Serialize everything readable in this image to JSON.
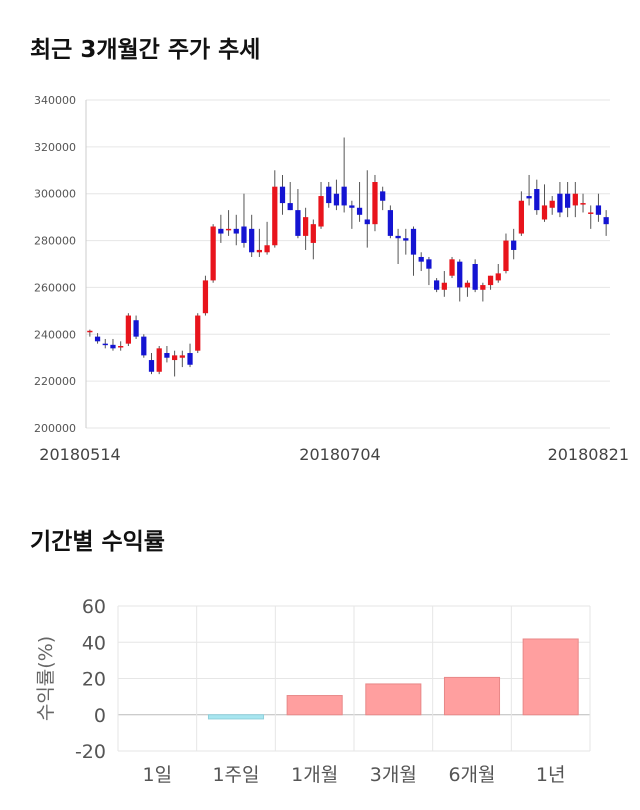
{
  "sections": {
    "price_title": "최근 3개월간 주가 추세",
    "returns_title": "기간별 수익률"
  },
  "chart_data": [
    {
      "type": "candlestick",
      "title": "최근 3개월간 주가 추세",
      "ylim": [
        200000,
        340000
      ],
      "y_ticks": [
        200000,
        220000,
        240000,
        260000,
        280000,
        300000,
        320000,
        340000
      ],
      "x_tick_labels": [
        "20180514",
        "20180704",
        "20180821"
      ],
      "grid": true,
      "colors": {
        "up": "#e8141c",
        "down": "#1414d2",
        "wick": "#555555"
      },
      "candles": [
        [
          241000,
          242000,
          239000,
          241500
        ],
        [
          239000,
          240500,
          236000,
          237000
        ],
        [
          236000,
          238000,
          234000,
          235500
        ],
        [
          235500,
          238000,
          233000,
          234000
        ],
        [
          235000,
          237000,
          233000,
          235000
        ],
        [
          236000,
          249000,
          235000,
          248000
        ],
        [
          246000,
          248000,
          238000,
          239000
        ],
        [
          239000,
          240000,
          230000,
          231000
        ],
        [
          229000,
          232000,
          223000,
          224000
        ],
        [
          224000,
          235000,
          223000,
          234000
        ],
        [
          232000,
          235000,
          228000,
          230000
        ],
        [
          229000,
          233000,
          222000,
          231000
        ],
        [
          230000,
          233000,
          226000,
          231000
        ],
        [
          232000,
          236000,
          226000,
          227000
        ],
        [
          233000,
          249000,
          232000,
          248000
        ],
        [
          249000,
          265000,
          248000,
          263000
        ],
        [
          263000,
          287000,
          262000,
          286000
        ],
        [
          285000,
          291000,
          279000,
          283000
        ],
        [
          285000,
          293000,
          282000,
          285000
        ],
        [
          285000,
          291000,
          278000,
          283000
        ],
        [
          286000,
          300000,
          277000,
          279000
        ],
        [
          285000,
          291000,
          273000,
          275000
        ],
        [
          275000,
          285000,
          273000,
          276000
        ],
        [
          275000,
          288000,
          274000,
          278000
        ],
        [
          278000,
          310000,
          277000,
          303000
        ],
        [
          303000,
          308000,
          291000,
          296000
        ],
        [
          296000,
          305000,
          293000,
          293000
        ],
        [
          293000,
          302000,
          281000,
          282000
        ],
        [
          282000,
          294000,
          276000,
          290000
        ],
        [
          279000,
          289000,
          272000,
          287000
        ],
        [
          286000,
          305000,
          285000,
          299000
        ],
        [
          303000,
          305000,
          294000,
          296000
        ],
        [
          300000,
          306000,
          293000,
          295000
        ],
        [
          303000,
          324000,
          292000,
          295000
        ],
        [
          295000,
          297000,
          285000,
          294000
        ],
        [
          294000,
          305000,
          288000,
          291000
        ],
        [
          289000,
          310000,
          277000,
          287000
        ],
        [
          287000,
          308000,
          284000,
          305000
        ],
        [
          301000,
          303000,
          293000,
          297000
        ],
        [
          293000,
          295000,
          281000,
          282000
        ],
        [
          282000,
          285000,
          270000,
          281000
        ],
        [
          281000,
          285000,
          274000,
          280000
        ],
        [
          285000,
          286000,
          265000,
          274000
        ],
        [
          273000,
          275000,
          267000,
          271000
        ],
        [
          272000,
          273000,
          261000,
          268000
        ],
        [
          263000,
          264000,
          258000,
          259000
        ],
        [
          259000,
          267000,
          256000,
          262000
        ],
        [
          265000,
          273000,
          264000,
          272000
        ],
        [
          271000,
          272000,
          254000,
          260000
        ],
        [
          260000,
          263000,
          256000,
          262000
        ],
        [
          270000,
          272000,
          258000,
          259000
        ],
        [
          259000,
          262000,
          254000,
          261000
        ],
        [
          261000,
          265000,
          259000,
          265000
        ],
        [
          263000,
          270000,
          262000,
          266000
        ],
        [
          267000,
          283000,
          266000,
          280000
        ],
        [
          280000,
          285000,
          272000,
          276000
        ],
        [
          283000,
          301000,
          282000,
          297000
        ],
        [
          299000,
          308000,
          295000,
          298000
        ],
        [
          302000,
          306000,
          291000,
          293000
        ],
        [
          289000,
          304000,
          288000,
          295000
        ],
        [
          294000,
          299000,
          291000,
          297000
        ],
        [
          300000,
          305000,
          290000,
          292000
        ],
        [
          300000,
          305000,
          290000,
          294000
        ],
        [
          295000,
          305000,
          290000,
          300000
        ],
        [
          296000,
          300000,
          292000,
          296000
        ],
        [
          292000,
          295000,
          285000,
          292000
        ],
        [
          295000,
          300000,
          288000,
          291000
        ],
        [
          290000,
          293000,
          282000,
          287000
        ]
      ]
    },
    {
      "type": "bar",
      "title": "기간별 수익률",
      "ylabel": "수익률(%)",
      "categories": [
        "1일",
        "1주일",
        "1개월",
        "3개월",
        "6개월",
        "1년"
      ],
      "values": [
        0.0,
        -2.3,
        10.6,
        17.0,
        20.6,
        41.8
      ],
      "ylim": [
        -20,
        60
      ],
      "y_ticks": [
        -20,
        0,
        20,
        40,
        60
      ],
      "grid": true,
      "colors": {
        "positive": "#ff9f9f",
        "negative": "#a8e6f0",
        "positive_edge": "#e88888",
        "negative_edge": "#8fd0dc"
      }
    }
  ]
}
